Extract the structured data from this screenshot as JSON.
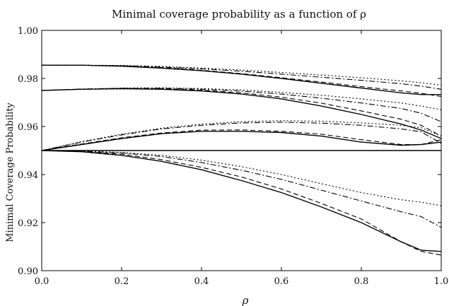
{
  "chart_data": {
    "type": "line",
    "title": "Minimal coverage probability as a function of ρ",
    "xlabel": "ρ",
    "ylabel": "Minimal Coverage Probability",
    "xlim": [
      0.0,
      1.0
    ],
    "ylim": [
      0.9,
      1.0
    ],
    "xticks": [
      "0.0",
      "0.2",
      "0.4",
      "0.6",
      "0.8",
      "1.0"
    ],
    "yticks": [
      "0.90",
      "0.92",
      "0.94",
      "0.96",
      "0.98",
      "1.00"
    ],
    "grid": false,
    "legend": "none",
    "x": [
      0.0,
      0.1,
      0.2,
      0.3,
      0.4,
      0.5,
      0.6,
      0.7,
      0.8,
      0.9,
      0.95,
      1.0
    ],
    "series": [
      {
        "style": "solid",
        "y": [
          0.9855,
          0.9855,
          0.9851,
          0.9843,
          0.9832,
          0.9818,
          0.98,
          0.978,
          0.976,
          0.974,
          0.9733,
          0.9733
        ]
      },
      {
        "style": "dashed",
        "y": [
          0.9855,
          0.9855,
          0.9852,
          0.9845,
          0.9834,
          0.982,
          0.9803,
          0.9785,
          0.9766,
          0.9748,
          0.9738,
          0.9725
        ]
      },
      {
        "style": "dashdot",
        "y": [
          0.9855,
          0.9855,
          0.9853,
          0.9848,
          0.984,
          0.983,
          0.9818,
          0.9805,
          0.9792,
          0.9778,
          0.9768,
          0.9755
        ]
      },
      {
        "style": "dotted",
        "y": [
          0.9855,
          0.9855,
          0.9854,
          0.985,
          0.9843,
          0.9835,
          0.9825,
          0.9814,
          0.9803,
          0.979,
          0.9782,
          0.9772
        ]
      },
      {
        "style": "solid",
        "y": [
          0.975,
          0.9755,
          0.9757,
          0.9755,
          0.9748,
          0.9735,
          0.9715,
          0.9685,
          0.965,
          0.961,
          0.9585,
          0.955
        ]
      },
      {
        "style": "dashed",
        "y": [
          0.975,
          0.9755,
          0.9758,
          0.9757,
          0.9751,
          0.974,
          0.9722,
          0.9697,
          0.9665,
          0.963,
          0.9605,
          0.956
        ]
      },
      {
        "style": "dashdot",
        "y": [
          0.975,
          0.9756,
          0.9759,
          0.9759,
          0.9755,
          0.9747,
          0.9735,
          0.9718,
          0.9698,
          0.9675,
          0.9655,
          0.962
        ]
      },
      {
        "style": "dotted",
        "y": [
          0.975,
          0.9756,
          0.976,
          0.9761,
          0.9758,
          0.9752,
          0.9742,
          0.973,
          0.9715,
          0.9698,
          0.9685,
          0.967
        ]
      },
      {
        "style": "solid",
        "y": [
          0.95,
          0.9525,
          0.955,
          0.957,
          0.958,
          0.958,
          0.9575,
          0.956,
          0.9535,
          0.9522,
          0.9525,
          0.9535
        ]
      },
      {
        "style": "dashed",
        "y": [
          0.95,
          0.9527,
          0.9553,
          0.9573,
          0.9585,
          0.9586,
          0.958,
          0.9568,
          0.9545,
          0.9525,
          0.9525,
          0.9545
        ]
      },
      {
        "style": "dashdot",
        "y": [
          0.95,
          0.9535,
          0.9565,
          0.959,
          0.9605,
          0.9615,
          0.9618,
          0.9614,
          0.9605,
          0.959,
          0.9578,
          0.953
        ]
      },
      {
        "style": "dotted",
        "y": [
          0.95,
          0.9537,
          0.9568,
          0.9593,
          0.961,
          0.962,
          0.9624,
          0.9622,
          0.9615,
          0.9605,
          0.9595,
          0.956
        ]
      },
      {
        "style": "solid",
        "y": [
          0.95,
          0.95,
          0.95,
          0.95,
          0.95,
          0.95,
          0.95,
          0.95,
          0.95,
          0.95,
          0.95,
          0.95
        ]
      },
      {
        "style": "solid",
        "y": [
          0.95,
          0.9495,
          0.948,
          0.9455,
          0.942,
          0.9375,
          0.9325,
          0.9265,
          0.92,
          0.912,
          0.9085,
          0.908
        ]
      },
      {
        "style": "dashed",
        "y": [
          0.95,
          0.9496,
          0.9485,
          0.9462,
          0.943,
          0.939,
          0.934,
          0.928,
          0.9215,
          0.912,
          0.908,
          0.9065
        ]
      },
      {
        "style": "dashdot",
        "y": [
          0.95,
          0.9497,
          0.949,
          0.9475,
          0.945,
          0.9418,
          0.938,
          0.9335,
          0.929,
          0.9245,
          0.9225,
          0.918
        ]
      },
      {
        "style": "dotted",
        "y": [
          0.95,
          0.9498,
          0.9492,
          0.948,
          0.946,
          0.9433,
          0.94,
          0.9362,
          0.9325,
          0.9295,
          0.9285,
          0.927
        ]
      }
    ]
  }
}
